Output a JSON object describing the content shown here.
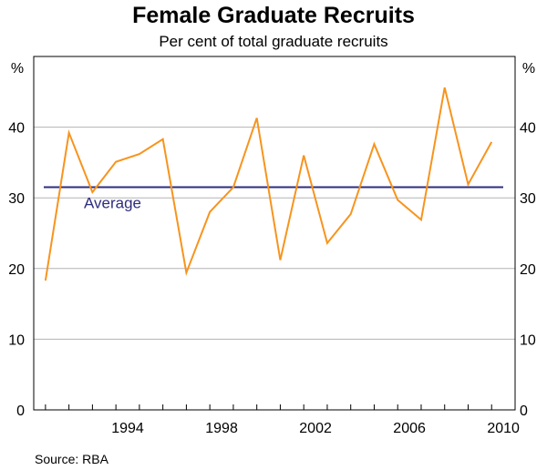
{
  "chart_data": {
    "type": "line",
    "title": "Female Graduate Recruits",
    "subtitle": "Per cent of total graduate recruits",
    "source": "Source: RBA",
    "ylabel_left": "%",
    "ylabel_right": "%",
    "ylim": [
      0,
      50
    ],
    "xlim": [
      1990.5,
      2011
    ],
    "yticks": [
      0,
      10,
      20,
      30,
      40
    ],
    "xtick_labels": [
      "1994",
      "1998",
      "2002",
      "2006",
      "2010"
    ],
    "grid": true,
    "series": [
      {
        "color": "#f7941d",
        "x": [
          1991,
          1992,
          1993,
          1994,
          1995,
          1996,
          1997,
          1998,
          1999,
          2000,
          2001,
          2002,
          2003,
          2004,
          2005,
          2006,
          2007,
          2008,
          2009,
          2010
        ],
        "values": [
          18.3,
          39.2,
          30.8,
          35.1,
          36.2,
          38.3,
          19.4,
          28.0,
          31.5,
          41.3,
          21.2,
          36.0,
          23.6,
          27.7,
          37.6,
          29.7,
          26.9,
          45.6,
          31.9,
          37.9
        ]
      }
    ],
    "average": {
      "label": "Average",
      "value": 31.5,
      "color": "#2e2d7f"
    }
  }
}
